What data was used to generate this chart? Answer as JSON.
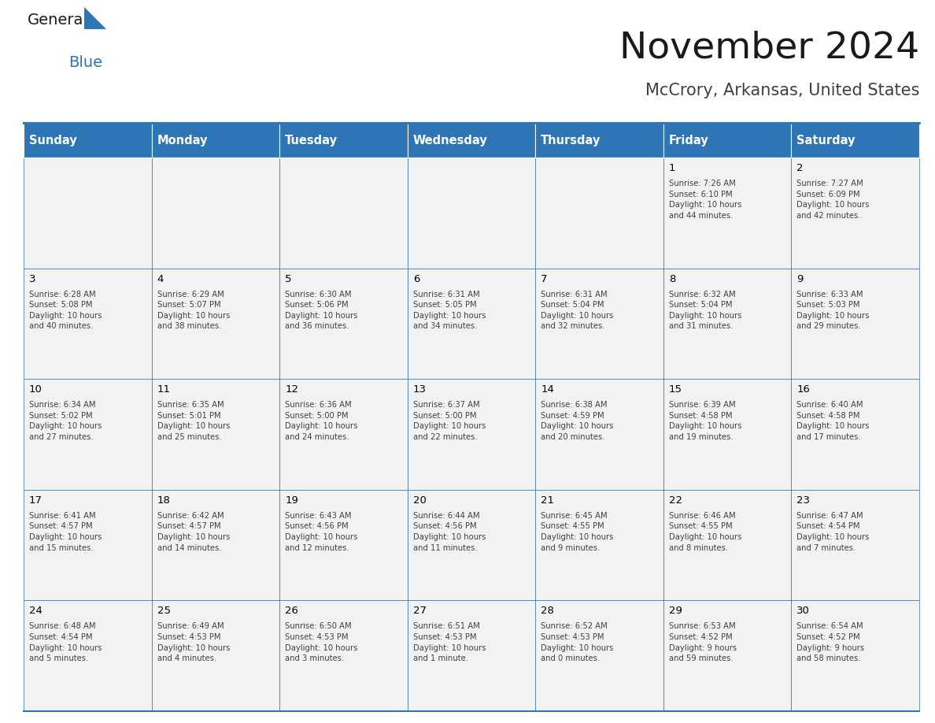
{
  "title": "November 2024",
  "subtitle": "McCrory, Arkansas, United States",
  "days_of_week": [
    "Sunday",
    "Monday",
    "Tuesday",
    "Wednesday",
    "Thursday",
    "Friday",
    "Saturday"
  ],
  "header_bg": "#2E75B6",
  "header_text": "#FFFFFF",
  "cell_bg_light": "#F2F2F2",
  "cell_bg_white": "#FFFFFF",
  "border_color": "#2E75B6",
  "day_number_color": "#000000",
  "info_text_color": "#404040",
  "title_color": "#1a1a1a",
  "subtitle_color": "#404040",
  "logo_general_color": "#1a1a1a",
  "logo_blue_color": "#2E75B6",
  "logo_triangle_color": "#2E75B6",
  "weeks": [
    [
      {
        "day": 0,
        "info": ""
      },
      {
        "day": 0,
        "info": ""
      },
      {
        "day": 0,
        "info": ""
      },
      {
        "day": 0,
        "info": ""
      },
      {
        "day": 0,
        "info": ""
      },
      {
        "day": 1,
        "info": "Sunrise: 7:26 AM\nSunset: 6:10 PM\nDaylight: 10 hours\nand 44 minutes."
      },
      {
        "day": 2,
        "info": "Sunrise: 7:27 AM\nSunset: 6:09 PM\nDaylight: 10 hours\nand 42 minutes."
      }
    ],
    [
      {
        "day": 3,
        "info": "Sunrise: 6:28 AM\nSunset: 5:08 PM\nDaylight: 10 hours\nand 40 minutes."
      },
      {
        "day": 4,
        "info": "Sunrise: 6:29 AM\nSunset: 5:07 PM\nDaylight: 10 hours\nand 38 minutes."
      },
      {
        "day": 5,
        "info": "Sunrise: 6:30 AM\nSunset: 5:06 PM\nDaylight: 10 hours\nand 36 minutes."
      },
      {
        "day": 6,
        "info": "Sunrise: 6:31 AM\nSunset: 5:05 PM\nDaylight: 10 hours\nand 34 minutes."
      },
      {
        "day": 7,
        "info": "Sunrise: 6:31 AM\nSunset: 5:04 PM\nDaylight: 10 hours\nand 32 minutes."
      },
      {
        "day": 8,
        "info": "Sunrise: 6:32 AM\nSunset: 5:04 PM\nDaylight: 10 hours\nand 31 minutes."
      },
      {
        "day": 9,
        "info": "Sunrise: 6:33 AM\nSunset: 5:03 PM\nDaylight: 10 hours\nand 29 minutes."
      }
    ],
    [
      {
        "day": 10,
        "info": "Sunrise: 6:34 AM\nSunset: 5:02 PM\nDaylight: 10 hours\nand 27 minutes."
      },
      {
        "day": 11,
        "info": "Sunrise: 6:35 AM\nSunset: 5:01 PM\nDaylight: 10 hours\nand 25 minutes."
      },
      {
        "day": 12,
        "info": "Sunrise: 6:36 AM\nSunset: 5:00 PM\nDaylight: 10 hours\nand 24 minutes."
      },
      {
        "day": 13,
        "info": "Sunrise: 6:37 AM\nSunset: 5:00 PM\nDaylight: 10 hours\nand 22 minutes."
      },
      {
        "day": 14,
        "info": "Sunrise: 6:38 AM\nSunset: 4:59 PM\nDaylight: 10 hours\nand 20 minutes."
      },
      {
        "day": 15,
        "info": "Sunrise: 6:39 AM\nSunset: 4:58 PM\nDaylight: 10 hours\nand 19 minutes."
      },
      {
        "day": 16,
        "info": "Sunrise: 6:40 AM\nSunset: 4:58 PM\nDaylight: 10 hours\nand 17 minutes."
      }
    ],
    [
      {
        "day": 17,
        "info": "Sunrise: 6:41 AM\nSunset: 4:57 PM\nDaylight: 10 hours\nand 15 minutes."
      },
      {
        "day": 18,
        "info": "Sunrise: 6:42 AM\nSunset: 4:57 PM\nDaylight: 10 hours\nand 14 minutes."
      },
      {
        "day": 19,
        "info": "Sunrise: 6:43 AM\nSunset: 4:56 PM\nDaylight: 10 hours\nand 12 minutes."
      },
      {
        "day": 20,
        "info": "Sunrise: 6:44 AM\nSunset: 4:56 PM\nDaylight: 10 hours\nand 11 minutes."
      },
      {
        "day": 21,
        "info": "Sunrise: 6:45 AM\nSunset: 4:55 PM\nDaylight: 10 hours\nand 9 minutes."
      },
      {
        "day": 22,
        "info": "Sunrise: 6:46 AM\nSunset: 4:55 PM\nDaylight: 10 hours\nand 8 minutes."
      },
      {
        "day": 23,
        "info": "Sunrise: 6:47 AM\nSunset: 4:54 PM\nDaylight: 10 hours\nand 7 minutes."
      }
    ],
    [
      {
        "day": 24,
        "info": "Sunrise: 6:48 AM\nSunset: 4:54 PM\nDaylight: 10 hours\nand 5 minutes."
      },
      {
        "day": 25,
        "info": "Sunrise: 6:49 AM\nSunset: 4:53 PM\nDaylight: 10 hours\nand 4 minutes."
      },
      {
        "day": 26,
        "info": "Sunrise: 6:50 AM\nSunset: 4:53 PM\nDaylight: 10 hours\nand 3 minutes."
      },
      {
        "day": 27,
        "info": "Sunrise: 6:51 AM\nSunset: 4:53 PM\nDaylight: 10 hours\nand 1 minute."
      },
      {
        "day": 28,
        "info": "Sunrise: 6:52 AM\nSunset: 4:53 PM\nDaylight: 10 hours\nand 0 minutes."
      },
      {
        "day": 29,
        "info": "Sunrise: 6:53 AM\nSunset: 4:52 PM\nDaylight: 9 hours\nand 59 minutes."
      },
      {
        "day": 30,
        "info": "Sunrise: 6:54 AM\nSunset: 4:52 PM\nDaylight: 9 hours\nand 58 minutes."
      }
    ]
  ]
}
